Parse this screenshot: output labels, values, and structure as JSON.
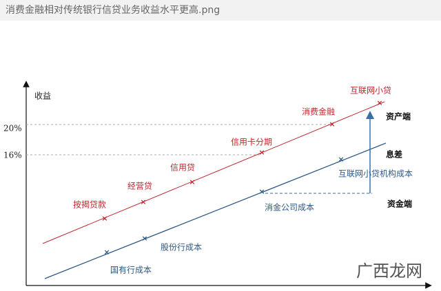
{
  "header": {
    "title": "消费金融相对传统银行信贷业务收益水平更高.png"
  },
  "diagram": {
    "y_axis_label": "收益",
    "y_tick_labels": [
      "20%",
      "16%"
    ],
    "asset_labels": [
      "按揭贷款",
      "经营贷",
      "信用贷",
      "信用卡分期",
      "消费金融",
      "互联网小贷"
    ],
    "cost_labels": [
      "国有行成本",
      "股份行成本",
      "消金公司成本",
      "互联网小贷机构成本"
    ],
    "side_labels": [
      "资产端",
      "息差",
      "资金端"
    ]
  },
  "watermark": "广西龙网"
}
